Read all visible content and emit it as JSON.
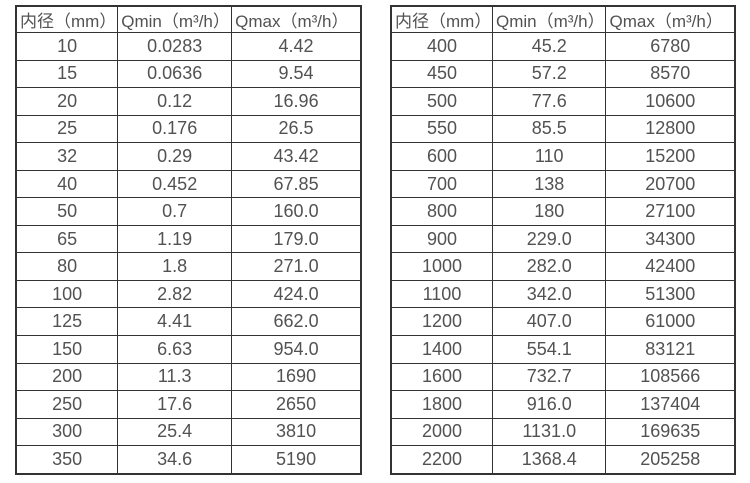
{
  "page": {
    "background_color": "#ffffff",
    "border_color": "#333333",
    "text_color": "#525252"
  },
  "tables": [
    {
      "name": "flow-table-left",
      "headers": [
        "内径（mm）",
        "Qmin（m³/h）",
        "Qmax（m³/h）"
      ],
      "rows": [
        [
          "10",
          "0.0283",
          "4.42"
        ],
        [
          "15",
          "0.0636",
          "9.54"
        ],
        [
          "20",
          "0.12",
          "16.96"
        ],
        [
          "25",
          "0.176",
          "26.5"
        ],
        [
          "32",
          "0.29",
          "43.42"
        ],
        [
          "40",
          "0.452",
          "67.85"
        ],
        [
          "50",
          "0.7",
          "160.0"
        ],
        [
          "65",
          "1.19",
          "179.0"
        ],
        [
          "80",
          "1.8",
          "271.0"
        ],
        [
          "100",
          "2.82",
          "424.0"
        ],
        [
          "125",
          "4.41",
          "662.0"
        ],
        [
          "150",
          "6.63",
          "954.0"
        ],
        [
          "200",
          "11.3",
          "1690"
        ],
        [
          "250",
          "17.6",
          "2650"
        ],
        [
          "300",
          "25.4",
          "3810"
        ],
        [
          "350",
          "34.6",
          "5190"
        ]
      ]
    },
    {
      "name": "flow-table-right",
      "headers": [
        "内径（mm）",
        "Qmin（m³/h）",
        "Qmax（m³/h）"
      ],
      "rows": [
        [
          "400",
          "45.2",
          "6780"
        ],
        [
          "450",
          "57.2",
          "8570"
        ],
        [
          "500",
          "77.6",
          "10600"
        ],
        [
          "550",
          "85.5",
          "12800"
        ],
        [
          "600",
          "110",
          "15200"
        ],
        [
          "700",
          "138",
          "20700"
        ],
        [
          "800",
          "180",
          "27100"
        ],
        [
          "900",
          "229.0",
          "34300"
        ],
        [
          "1000",
          "282.0",
          "42400"
        ],
        [
          "1100",
          "342.0",
          "51300"
        ],
        [
          "1200",
          "407.0",
          "61000"
        ],
        [
          "1400",
          "554.1",
          "83121"
        ],
        [
          "1600",
          "732.7",
          "108566"
        ],
        [
          "1800",
          "916.0",
          "137404"
        ],
        [
          "2000",
          "1131.0",
          "169635"
        ],
        [
          "2200",
          "1368.4",
          "205258"
        ]
      ]
    }
  ]
}
